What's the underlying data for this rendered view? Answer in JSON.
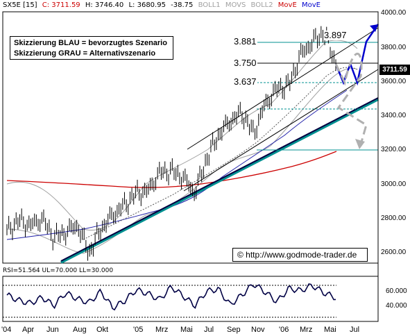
{
  "header": {
    "symbol": "SX5E [15]",
    "close": "C: 3711.59",
    "high": "H: 3746.40",
    "low": "L: 3680.95",
    "change": "-38.75",
    "ind1": "BOLL1",
    "ind2": "MOVS",
    "ind3": "BOLL2",
    "ind4": "MovE",
    "ind5": "MovE"
  },
  "legend": {
    "line1": "Skizzierung BLAU = bevorzugtes Szenario",
    "line2": "Skizzierung GRAU = Alternativszenario"
  },
  "watermark": "© http://www.godmode-trader.de",
  "levels": {
    "l3897": "3.897",
    "l3881": "3.881",
    "l3750": "3.750",
    "l3637": "3.637"
  },
  "last_price": "3711.59",
  "colors": {
    "blue": "#0000cc",
    "grey": "#b0b0b0",
    "teal": "#009090",
    "red": "#cc0000",
    "ma_blue": "#2222aa"
  },
  "chart_data": [
    {
      "type": "line",
      "title": "SX5E [15]",
      "x_ticks": [
        "'04",
        "Apr",
        "Jun",
        "Aug",
        "Okt",
        "'05",
        "Mrz",
        "Mai",
        "Jul",
        "Sep",
        "Nov",
        "'06",
        "Mrz",
        "Mai",
        "Jul"
      ],
      "y_ticks": [
        "4000.00",
        "3800.00",
        "3600.00",
        "3400.00",
        "3200.00",
        "3000.00",
        "2800.00",
        "2600.00"
      ],
      "ylim": [
        2540,
        4010
      ],
      "price_path": [
        [
          "'04",
          2730
        ],
        [
          "Feb",
          2790
        ],
        [
          "Mrz",
          2760
        ],
        [
          "Apr",
          2800
        ],
        [
          "Mai",
          2690
        ],
        [
          "Jun",
          2720
        ],
        [
          "Jul",
          2760
        ],
        [
          "Aug",
          2600
        ],
        [
          "Sep",
          2740
        ],
        [
          "Okt",
          2820
        ],
        [
          "Nov",
          2880
        ],
        [
          "Dez",
          2950
        ],
        [
          "'05",
          2960
        ],
        [
          "Feb",
          3070
        ],
        [
          "Mrz",
          3080
        ],
        [
          "Apr",
          3040
        ],
        [
          "Mai",
          2950
        ],
        [
          "Jun",
          3150
        ],
        [
          "Jul",
          3290
        ],
        [
          "Aug",
          3370
        ],
        [
          "Sep",
          3420
        ],
        [
          "Okt",
          3300
        ],
        [
          "Nov",
          3470
        ],
        [
          "Dez",
          3560
        ],
        [
          "'06",
          3580
        ],
        [
          "Feb",
          3760
        ],
        [
          "Mrz",
          3830
        ],
        [
          "Apr",
          3890
        ],
        [
          "Mai",
          3711.59
        ]
      ],
      "levels": [
        3897,
        3881,
        3750,
        3637,
        3475,
        3210
      ]
    },
    {
      "type": "line",
      "title": "RSI=51.564 UL=70.000 LL=30.000",
      "y_ticks": [
        "60.000",
        "40.000"
      ],
      "upper": 70,
      "lower": 30,
      "last": 51.564,
      "rsi_path": [
        55,
        48,
        44,
        52,
        41,
        58,
        50,
        45,
        60,
        38,
        47,
        62,
        57,
        49,
        66,
        54,
        41,
        60,
        63,
        42,
        55,
        70,
        59,
        46,
        64,
        61,
        68,
        58,
        51.564
      ]
    }
  ]
}
